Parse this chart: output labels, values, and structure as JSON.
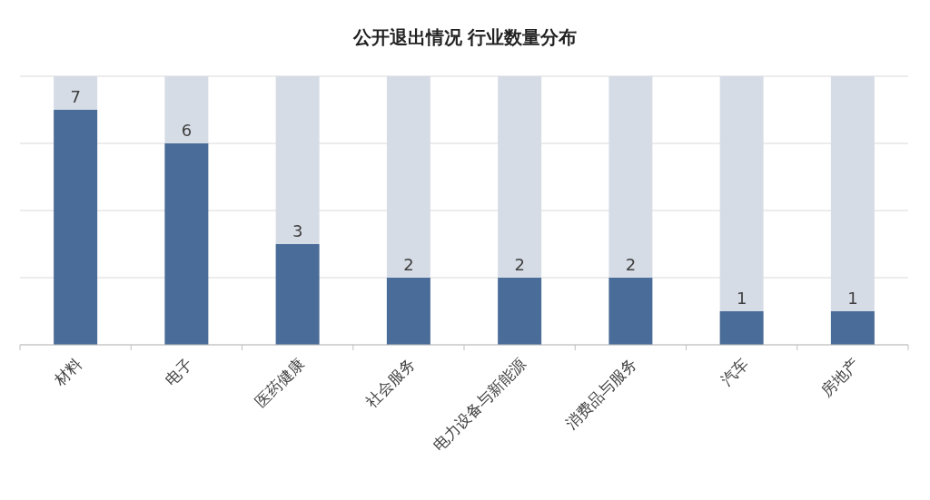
{
  "chart_data": {
    "type": "bar",
    "title": "公开退出情况 行业数量分布",
    "categories": [
      "材料",
      "电子",
      "医药健康",
      "社会服务",
      "电力设备与新能源",
      "消费品与服务",
      "汽车",
      "房地产"
    ],
    "stacked": true,
    "series": [
      {
        "color": "#4a6c98",
        "values": [
          7,
          6,
          3,
          2,
          2,
          2,
          1,
          1
        ],
        "value_labels": [
          "7",
          "6",
          "3",
          "2",
          "2",
          "2",
          "1",
          "1"
        ]
      },
      {
        "color": "#d6dce6",
        "values": [
          1,
          2,
          5,
          6,
          6,
          6,
          7,
          7
        ]
      }
    ],
    "ylim": [
      0,
      8
    ],
    "yticks": [
      {
        "value": 0,
        "label": null
      },
      {
        "value": 2,
        "label": null
      },
      {
        "value": 4,
        "label": null
      },
      {
        "value": 6,
        "label": null
      },
      {
        "value": 8,
        "label": null
      }
    ],
    "grid": "y",
    "tick_labels": "x"
  }
}
